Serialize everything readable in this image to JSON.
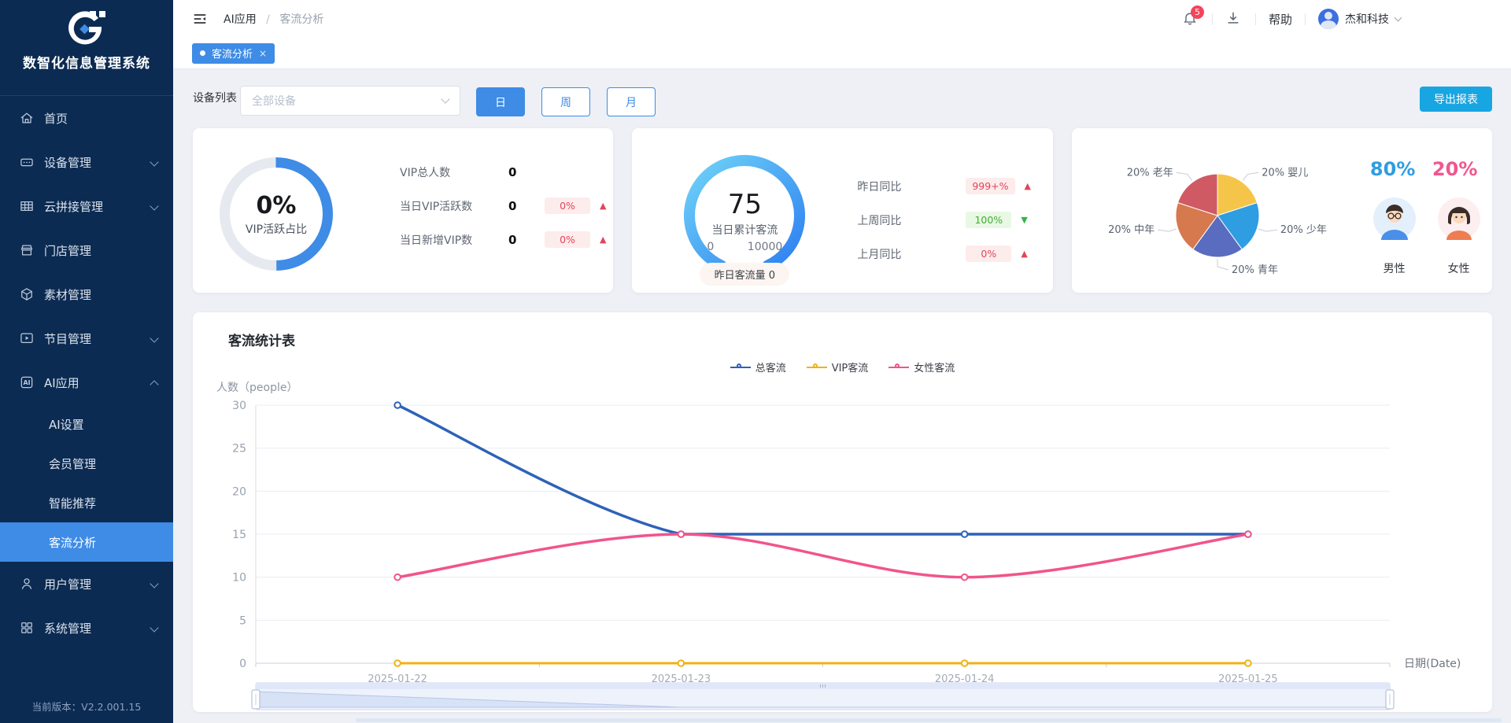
{
  "brand": {
    "title": "数智化信息管理系统",
    "logo_letter": "G"
  },
  "sidebar": {
    "items": [
      {
        "icon": "home-icon",
        "label": "首页"
      },
      {
        "icon": "device-icon",
        "label": "设备管理",
        "chevron": true
      },
      {
        "icon": "splice-icon",
        "label": "云拼接管理",
        "chevron": true
      },
      {
        "icon": "store-icon",
        "label": "门店管理"
      },
      {
        "icon": "material-icon",
        "label": "素材管理"
      },
      {
        "icon": "program-icon",
        "label": "节目管理",
        "chevron": true
      },
      {
        "icon": "ai-icon",
        "label": "AI应用",
        "chevron": true,
        "expanded": true,
        "children": [
          {
            "label": "AI设置"
          },
          {
            "label": "会员管理"
          },
          {
            "label": "智能推荐"
          },
          {
            "label": "客流分析",
            "active": true
          }
        ]
      },
      {
        "icon": "user-icon",
        "label": "用户管理",
        "chevron": true
      },
      {
        "icon": "system-icon",
        "label": "系统管理",
        "chevron": true
      }
    ],
    "version": "当前版本：V2.2.001.15"
  },
  "topbar": {
    "breadcrumb": {
      "parent": "AI应用",
      "separator": "/",
      "current": "客流分析"
    },
    "notification_count": "5",
    "help_label": "帮助",
    "username": "杰和科技"
  },
  "tab": {
    "label": "客流分析",
    "close_glyph": "×"
  },
  "filters": {
    "device_label": "设备列表",
    "device_placeholder": "全部设备",
    "periods": [
      "日",
      "周",
      "月"
    ],
    "active_period": "日",
    "export_label": "导出报表"
  },
  "cards": {
    "vip": {
      "percent": "0%",
      "caption": "VIP活跃占比",
      "ring_color": "#3e8ce6",
      "rows": [
        {
          "label": "VIP总人数",
          "value": "0"
        },
        {
          "label": "当日VIP活跃数",
          "value": "0",
          "badge": "0%",
          "dir": "up",
          "tone": "red"
        },
        {
          "label": "当日新增VIP数",
          "value": "0",
          "badge": "0%",
          "dir": "up",
          "tone": "red"
        }
      ]
    },
    "gauge": {
      "value": "75",
      "caption": "当日累计客流",
      "min": "0",
      "max": "10000",
      "pill": "昨日客流量 0",
      "rows": [
        {
          "label": "昨日同比",
          "badge": "999+%",
          "dir": "up",
          "tone": "red"
        },
        {
          "label": "上周同比",
          "badge": "100%",
          "dir": "down",
          "tone": "green"
        },
        {
          "label": "上月同比",
          "badge": "0%",
          "dir": "up",
          "tone": "red"
        }
      ]
    },
    "demographic": {
      "pie_slices": [
        {
          "label": "20% 婴儿",
          "value": 20,
          "color": "#f5c54a"
        },
        {
          "label": "20% 少年",
          "value": 20,
          "color": "#2f9de2"
        },
        {
          "label": "20% 青年",
          "value": 20,
          "color": "#5a6cc0"
        },
        {
          "label": "20% 中年",
          "value": 20,
          "color": "#d6794f"
        },
        {
          "label": "20% 老年",
          "value": 20,
          "color": "#cf5a63"
        }
      ],
      "male": {
        "percent": "80%",
        "label": "男性"
      },
      "female": {
        "percent": "20%",
        "label": "女性"
      }
    }
  },
  "chart_data": {
    "type": "line",
    "title": "客流统计表",
    "categories": [
      "2025-01-22",
      "2025-01-23",
      "2025-01-24",
      "2025-01-25"
    ],
    "series": [
      {
        "name": "总客流",
        "color": "#2e62b8",
        "values": [
          30,
          15,
          15,
          15
        ]
      },
      {
        "name": "VIP客流",
        "color": "#f1b112",
        "values": [
          0,
          0,
          0,
          0
        ]
      },
      {
        "name": "女性客流",
        "color": "#f1548c",
        "values": [
          10,
          15,
          10,
          15
        ]
      }
    ],
    "ylabel": "人数（people）",
    "xlabel": "日期(Date)",
    "ylim": [
      0,
      30
    ],
    "yticks": [
      0,
      5,
      10,
      15,
      20,
      25,
      30
    ],
    "grid": true,
    "smooth": true,
    "legend_position": "top",
    "datazoom": true
  }
}
